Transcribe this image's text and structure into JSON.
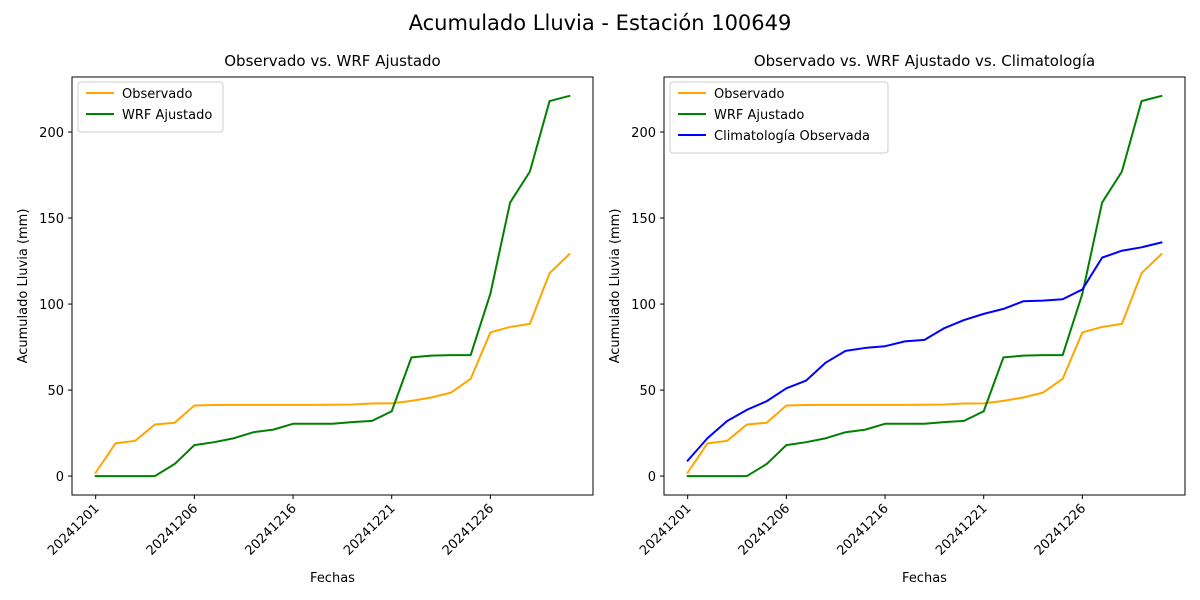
{
  "figure": {
    "suptitle": "Acumulado Lluvia - Estación 100649"
  },
  "chart_data": [
    {
      "type": "line",
      "title": "Observado vs. WRF Ajustado",
      "xlabel": "Fechas",
      "ylabel": "Acumulado Lluvia (mm)",
      "ylim": [
        -11,
        232
      ],
      "yticks": [
        0,
        50,
        100,
        150,
        200
      ],
      "xtick_labels": [
        "20241201",
        "20241206",
        "20241216",
        "20241221",
        "20241226"
      ],
      "xtick_positions": [
        0,
        5,
        10,
        15,
        20
      ],
      "xlim": [
        -1.2,
        25.2
      ],
      "grid": false,
      "legend_position": "top-left",
      "x": [
        0,
        1,
        2,
        3,
        4,
        5,
        6,
        7,
        8,
        9,
        10,
        11,
        12,
        13,
        14,
        15,
        16,
        17,
        18,
        19,
        20,
        21,
        22,
        23,
        24
      ],
      "series": [
        {
          "name": "Observado",
          "color": "#ffa500",
          "values": [
            2,
            19,
            20.5,
            30,
            31,
            41,
            41.3,
            41.4,
            41.4,
            41.4,
            41.4,
            41.4,
            41.5,
            41.6,
            42.2,
            42.3,
            43.7,
            45.7,
            48.5,
            56.5,
            83.5,
            86.7,
            88.5,
            118,
            129
          ]
        },
        {
          "name": "WRF Ajustado",
          "color": "#008000",
          "values": [
            0,
            0,
            0,
            0,
            7,
            18,
            19.7,
            22,
            25.5,
            27,
            30.4,
            30.4,
            30.4,
            31.4,
            32.1,
            37.7,
            69,
            70,
            70.3,
            70.3,
            106,
            159,
            177,
            218,
            221
          ]
        }
      ]
    },
    {
      "type": "line",
      "title": "Observado vs. WRF Ajustado vs. Climatología",
      "xlabel": "Fechas",
      "ylabel": "Acumulado Lluvia (mm)",
      "ylim": [
        -11,
        232
      ],
      "yticks": [
        0,
        50,
        100,
        150,
        200
      ],
      "xtick_labels": [
        "20241201",
        "20241206",
        "20241216",
        "20241221",
        "20241226"
      ],
      "xtick_positions": [
        0,
        5,
        10,
        15,
        20
      ],
      "xlim": [
        -1.2,
        25.2
      ],
      "grid": false,
      "legend_position": "top-left",
      "x": [
        0,
        1,
        2,
        3,
        4,
        5,
        6,
        7,
        8,
        9,
        10,
        11,
        12,
        13,
        14,
        15,
        16,
        17,
        18,
        19,
        20,
        21,
        22,
        23,
        24
      ],
      "series": [
        {
          "name": "Observado",
          "color": "#ffa500",
          "values": [
            2,
            19,
            20.5,
            30,
            31,
            41,
            41.3,
            41.4,
            41.4,
            41.4,
            41.4,
            41.4,
            41.5,
            41.6,
            42.2,
            42.3,
            43.7,
            45.7,
            48.5,
            56.5,
            83.5,
            86.7,
            88.5,
            118,
            129
          ]
        },
        {
          "name": "WRF Ajustado",
          "color": "#008000",
          "values": [
            0,
            0,
            0,
            0,
            7,
            18,
            19.7,
            22,
            25.5,
            27,
            30.4,
            30.4,
            30.4,
            31.4,
            32.1,
            37.7,
            69,
            70,
            70.3,
            70.3,
            106,
            159,
            177,
            218,
            221
          ]
        },
        {
          "name": "Climatología Observada",
          "color": "#0000ff",
          "values": [
            9,
            22,
            32,
            38.5,
            43.5,
            51,
            55.5,
            66,
            72.8,
            74.5,
            75.5,
            78.3,
            79.2,
            86,
            90.7,
            94.3,
            97.2,
            101.6,
            102,
            102.8,
            108.5,
            127,
            131,
            133,
            135.8
          ]
        }
      ]
    }
  ]
}
